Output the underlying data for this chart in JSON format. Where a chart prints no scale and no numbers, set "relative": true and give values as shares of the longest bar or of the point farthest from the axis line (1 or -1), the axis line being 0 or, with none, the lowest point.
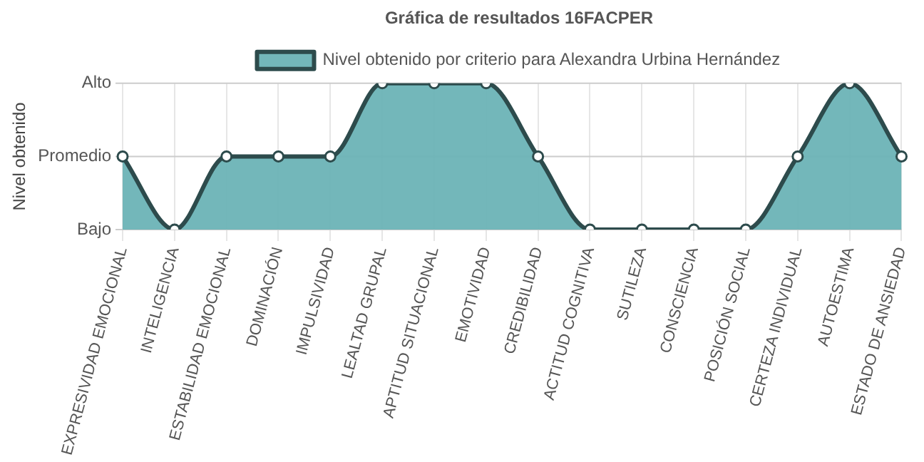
{
  "chart_data": {
    "type": "area",
    "title": "Gráfica de resultados 16FACPER",
    "ylabel": "Nivel obtenido",
    "relative": true,
    "categories": [
      "EXPRESIVIDAD EMOCIONAL",
      "INTELIGENCIA",
      "ESTABILIDAD EMOCIONAL",
      "DOMINACIÓN",
      "IMPULSIVIDAD",
      "LEALTAD GRUPAL",
      "APTITUD SITUACIONAL",
      "EMOTIVIDAD",
      "CREDIBILIDAD",
      "ACTITUD COGNITIVA",
      "SUTILEZA",
      "CONSCIENCIA",
      "POSICIÓN SOCIAL",
      "CERTEZA INDIVIDUAL",
      "AUTOESTIMA",
      "ESTADO DE ANSIEDAD"
    ],
    "series": [
      {
        "name": "Nivel obtenido por criterio para Alexandra Urbina Hernández",
        "color": "#6bb3b6",
        "values": [
          0.5,
          0,
          0.5,
          0.5,
          0.5,
          1,
          1,
          1,
          0.5,
          0,
          0,
          0,
          0,
          0.5,
          1,
          0.5
        ]
      }
    ],
    "ref_lines": [
      {
        "axis": "y",
        "value": 1,
        "label": "Alto",
        "color": "#cccccc"
      },
      {
        "axis": "y",
        "value": 0.5,
        "label": "Promedio",
        "color": "#cccccc"
      },
      {
        "axis": "y",
        "value": 0,
        "label": "Bajo",
        "color": "#cccccc"
      }
    ],
    "grid": true,
    "legend": "top",
    "marker": "circle",
    "line_style": "solid"
  }
}
